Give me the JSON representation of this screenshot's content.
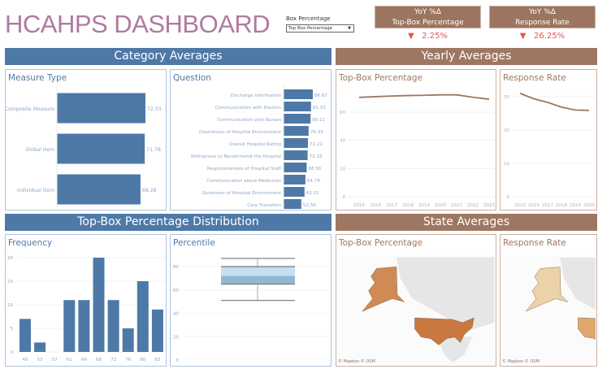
{
  "header": {
    "title": "HCAHPS DASHBOARD"
  },
  "filter": {
    "label": "Box Percentage",
    "selected": "Top Box Percentage"
  },
  "kpis": [
    {
      "line1": "YoY %Δ",
      "line2": "Top-Box Percentage",
      "direction": "down",
      "value": "2.25%"
    },
    {
      "line1": "YoY %Δ",
      "line2": "Response Rate",
      "direction": "down",
      "value": "26.25%"
    }
  ],
  "sections": {
    "category": "Category Averages",
    "yearly": "Yearly Averages",
    "distribution": "Top-Box Percentage Distribution",
    "state": "State Averages"
  },
  "colors": {
    "blue": "#4e79a7",
    "brown": "#9e7762",
    "title": "#b07aa1",
    "negative": "#e15759"
  },
  "panels": {
    "measure_type": "Measure Type",
    "question": "Question",
    "yearly_topbox": "Top-Box Percentage",
    "yearly_response": "Response Rate",
    "frequency": "Frequency",
    "percentile": "Percentile",
    "state_topbox": "Top-Box Percentage",
    "state_response": "Response Rate",
    "map_credit": "© Mapbox  © OSM"
  },
  "chart_data": [
    {
      "id": "measure_type",
      "type": "bar",
      "orientation": "horizontal",
      "categories": [
        "Composite Measure",
        "Global Item",
        "Individual Item"
      ],
      "values": [
        72.33,
        71.78,
        68.28
      ],
      "labels": [
        "72.33",
        "71.78",
        "68.28"
      ]
    },
    {
      "id": "question",
      "type": "bar",
      "orientation": "horizontal",
      "categories": [
        "Discharge Information",
        "Communication with Doctors",
        "Communication with Nurses",
        "Cleanliness of Hospital Environment",
        "Overall Hospital Rating",
        "Willingness to Recommend the Hospital",
        "Responsiveness of Hospital Staff",
        "Communication about Medicines",
        "Quietness of Hospital Environment",
        "Care Transition"
      ],
      "values": [
        86.67,
        81.33,
        80.11,
        74.33,
        72.22,
        71.33,
        68.56,
        64.78,
        62.22,
        52.56
      ],
      "labels": [
        "86.67",
        "81.33",
        "80.11",
        "74.33",
        "72.22",
        "71.33",
        "68.56",
        "64.78",
        "62.22",
        "52.56"
      ]
    },
    {
      "id": "yearly_topbox",
      "type": "line",
      "x": [
        "2015",
        "2016",
        "2017",
        "2018",
        "2019",
        "2020",
        "2021",
        "2022",
        "2023"
      ],
      "values": [
        70.5,
        71,
        71.5,
        71.8,
        72,
        72.3,
        72.3,
        70.6,
        69.2
      ],
      "yticks": [
        "0",
        "20",
        "40",
        "60"
      ],
      "ylim": [
        0,
        75
      ],
      "grid": true
    },
    {
      "id": "yearly_response",
      "type": "line",
      "x": [
        "2015",
        "2016",
        "2017",
        "2018",
        "2019",
        "2020"
      ],
      "values": [
        31,
        29.4,
        28.3,
        26.9,
        26,
        25.9
      ],
      "yticks": [
        "0",
        "10",
        "20",
        "30"
      ],
      "ylim": [
        0,
        32
      ],
      "grid": true
    },
    {
      "id": "frequency",
      "type": "bar",
      "categories": [
        "49",
        "53",
        "57",
        "61",
        "64",
        "68",
        "72",
        "76",
        "80",
        "83"
      ],
      "values": [
        7,
        2,
        0,
        11,
        11,
        20,
        11,
        5,
        15,
        9
      ],
      "yticks": [
        "0",
        "5",
        "10",
        "15",
        "20"
      ],
      "ylim": [
        0,
        20
      ]
    },
    {
      "id": "percentile",
      "type": "boxplot",
      "min": 51,
      "q1": 65,
      "median": 72,
      "q3": 80,
      "max": 87,
      "yticks": [
        "0",
        "20",
        "40",
        "60",
        "80"
      ],
      "ylim": [
        0,
        90
      ]
    }
  ]
}
